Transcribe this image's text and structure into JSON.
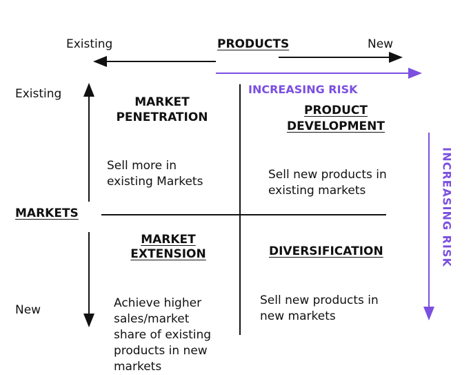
{
  "colors": {
    "risk": "#7b4fe0",
    "text": "#111111"
  },
  "products_axis": {
    "title": "PRODUCTS",
    "left": "Existing",
    "right": "New"
  },
  "markets_axis": {
    "title": "MARKETS",
    "top": "Existing",
    "bottom": "New"
  },
  "risk_labels": {
    "horizontal": "INCREASING RISK",
    "vertical": "INCREASING RISK"
  },
  "quadrants": {
    "penetration": {
      "title_line1": "MARKET",
      "title_line2": "PENETRATION",
      "desc_line1": "Sell more in",
      "desc_line2": "existing Markets"
    },
    "development": {
      "title_line1": "PRODUCT",
      "title_line2": "DEVELOPMENT",
      "desc_line1": "Sell new products in",
      "desc_line2": "existing markets"
    },
    "extension": {
      "title_line1": "MARKET",
      "title_line2": "EXTENSION",
      "desc_line1": "Achieve higher",
      "desc_line2": "sales/market",
      "desc_line3": "share of existing",
      "desc_line4": "products in new",
      "desc_line5": "markets"
    },
    "diversification": {
      "title": "DIVERSIFICATION",
      "desc_line1": "Sell new products in",
      "desc_line2": "new markets"
    }
  }
}
